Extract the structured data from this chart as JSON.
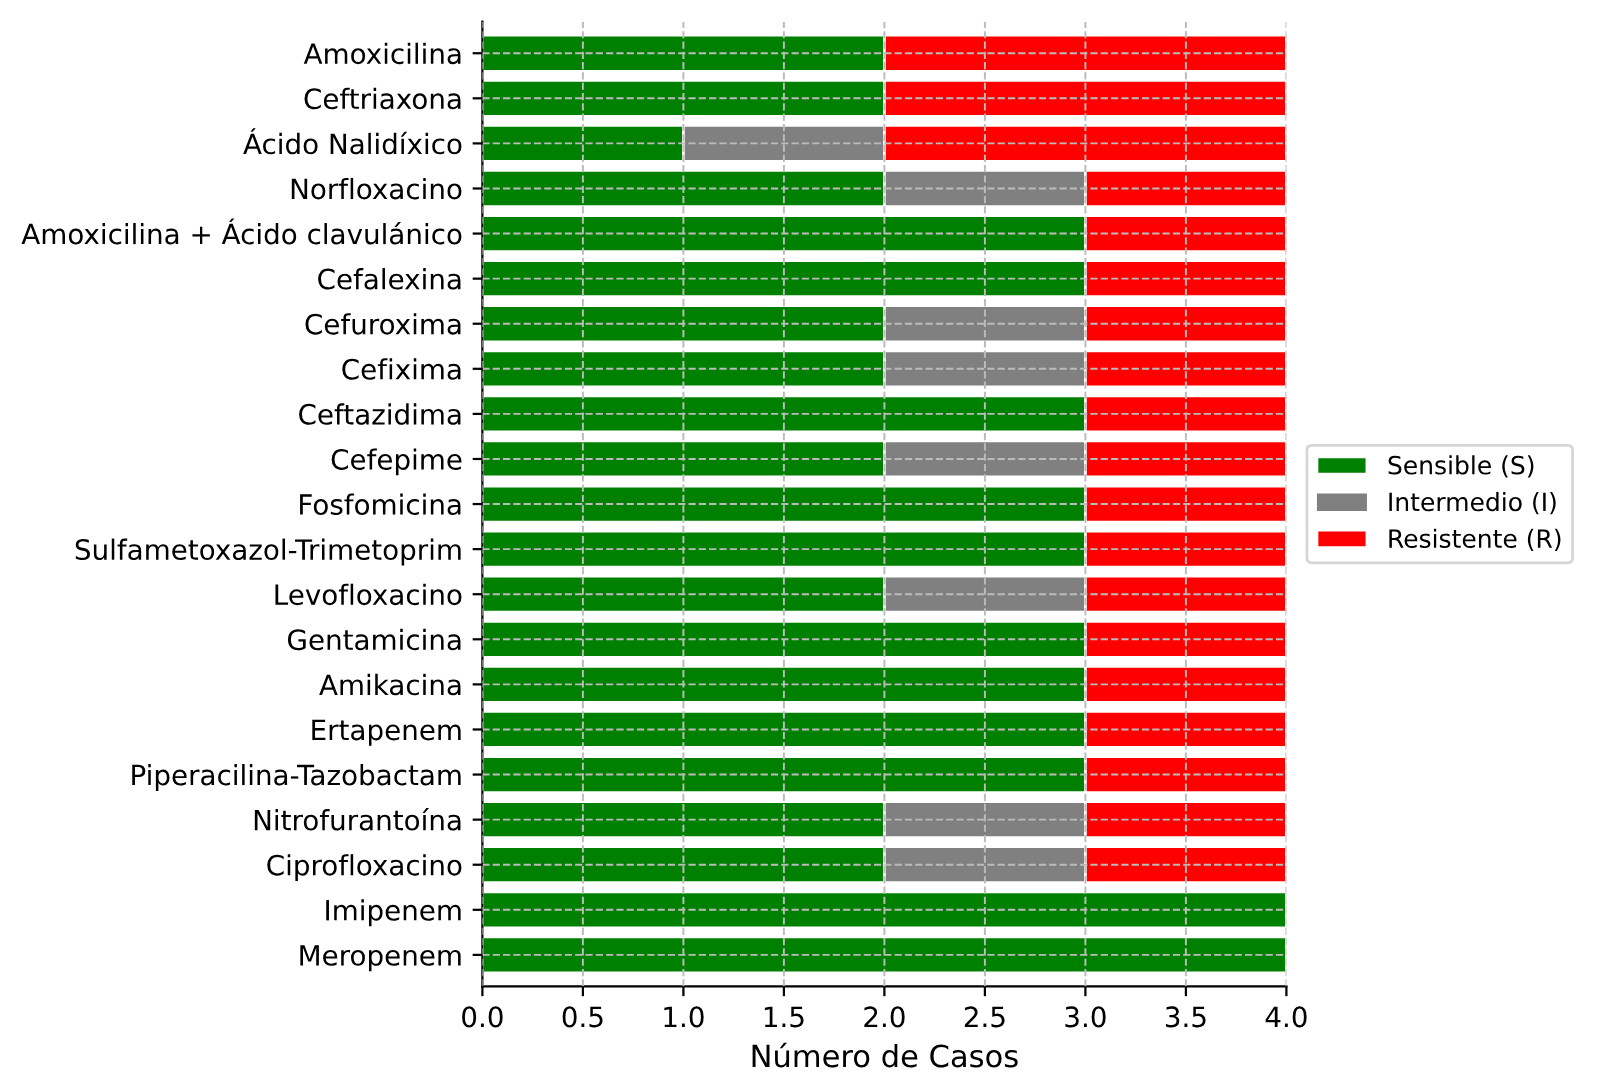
{
  "chart_data": {
    "type": "bar",
    "orientation": "horizontal",
    "stacked": true,
    "xlabel": "Número de Casos",
    "categories": [
      "Amoxicilina",
      "Ceftriaxona",
      "Ácido Nalidíxico",
      "Norfloxacino",
      "Amoxicilina + Ácido clavulánico",
      "Cefalexina",
      "Cefuroxima",
      "Cefixima",
      "Ceftazidima",
      "Cefepime",
      "Fosfomicina",
      "Sulfametoxazol-Trimetoprim",
      "Levofloxacino",
      "Gentamicina",
      "Amikacina",
      "Ertapenem",
      "Piperacilina-Tazobactam",
      "Nitrofurantoína",
      "Ciprofloxacino",
      "Imipenem",
      "Meropenem"
    ],
    "series": [
      {
        "name": "Sensible (S)",
        "color": "#008000",
        "values": [
          2,
          2,
          1,
          2,
          3,
          3,
          2,
          2,
          3,
          2,
          3,
          3,
          2,
          3,
          3,
          3,
          3,
          2,
          2,
          4,
          4
        ]
      },
      {
        "name": "Intermedio (I)",
        "color": "#808080",
        "values": [
          0,
          0,
          1,
          1,
          0,
          0,
          1,
          1,
          0,
          1,
          0,
          0,
          1,
          0,
          0,
          0,
          0,
          1,
          1,
          0,
          0
        ]
      },
      {
        "name": "Resistente (R)",
        "color": "#ff0000",
        "values": [
          2,
          2,
          2,
          1,
          1,
          1,
          1,
          1,
          1,
          1,
          1,
          1,
          1,
          1,
          1,
          1,
          1,
          1,
          1,
          0,
          0
        ]
      }
    ],
    "xlim": [
      0,
      4
    ],
    "xticks": [
      {
        "value": 0,
        "label": "0.0"
      },
      0.5,
      {
        "value": 1,
        "label": "1.0"
      },
      1.5,
      {
        "value": 2,
        "label": "2.0"
      },
      2.5,
      {
        "value": 3,
        "label": "3.0"
      },
      3.5,
      {
        "value": 4,
        "label": "4.0"
      }
    ],
    "grid": true,
    "legend": "right"
  }
}
